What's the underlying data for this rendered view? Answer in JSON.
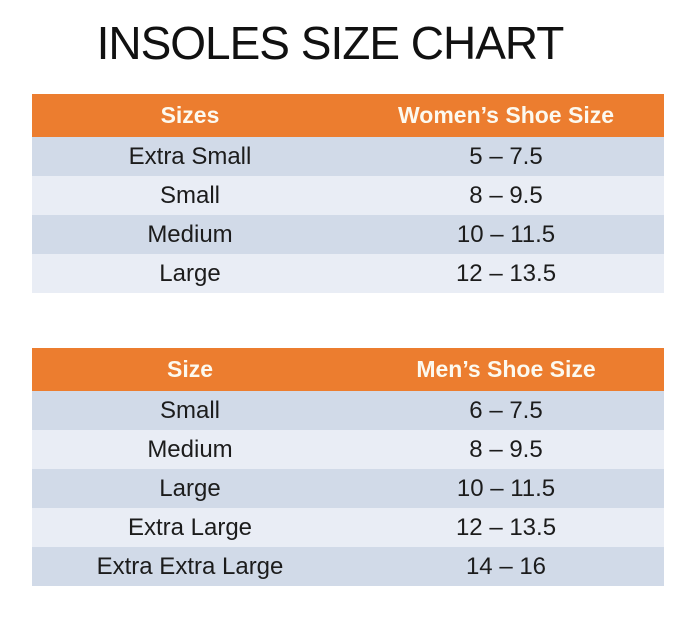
{
  "page_title": "INSOLES SIZE CHART",
  "colors": {
    "page_bg": "#FFFFFF",
    "title_text": "#111111",
    "header_bg": "#EC7D2F",
    "header_text": "#FCF9EF",
    "row_dark": "#D1DAE8",
    "row_light": "#E9EDF5",
    "body_text": "#1C1C1C"
  },
  "chart_data": [
    {
      "type": "table",
      "columns": [
        "Sizes",
        "Women’s Shoe Size"
      ],
      "rows": [
        [
          "Extra Small",
          "5 – 7.5"
        ],
        [
          "Small",
          "8 – 9.5"
        ],
        [
          "Medium",
          "10 – 11.5"
        ],
        [
          "Large",
          "12 – 13.5"
        ]
      ]
    },
    {
      "type": "table",
      "columns": [
        "Size",
        "Men’s Shoe Size"
      ],
      "rows": [
        [
          "Small",
          "6 – 7.5"
        ],
        [
          "Medium",
          "8 – 9.5"
        ],
        [
          "Large",
          "10 – 11.5"
        ],
        [
          "Extra Large",
          "12 – 13.5"
        ],
        [
          "Extra Extra Large",
          "14 – 16"
        ]
      ]
    }
  ]
}
